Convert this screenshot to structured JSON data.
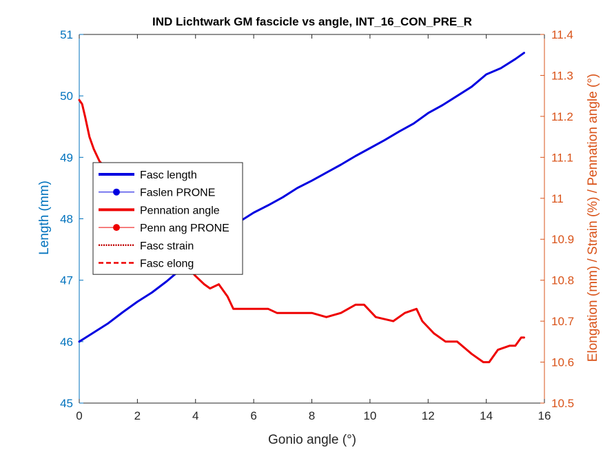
{
  "chart_data": {
    "type": "line",
    "title": "IND Lichtwark GM fascicle vs angle, INT_16_CON_PRE_R",
    "xlabel": "Gonio angle (°)",
    "ylabel_left": "Length (mm)",
    "ylabel_right": "Elongation (mm) / Strain (%) / Pennation angle (°)",
    "xlim": [
      0,
      16
    ],
    "ylim_left": [
      45,
      51
    ],
    "ylim_right": [
      10.5,
      11.4
    ],
    "x_ticks": [
      "0",
      "2",
      "4",
      "6",
      "8",
      "10",
      "12",
      "14",
      "16"
    ],
    "y_left_ticks": [
      "45",
      "46",
      "47",
      "48",
      "49",
      "50",
      "51"
    ],
    "y_right_ticks": [
      "10.5",
      "10.6",
      "10.7",
      "10.8",
      "10.9",
      "11",
      "11.1",
      "11.2",
      "11.3",
      "11.4"
    ],
    "grid": false,
    "legend_position": "middle-left",
    "colors": {
      "left_axis": "#0072BD",
      "right_axis": "#D95319",
      "fasc_length": "#0000E0",
      "pennation": "#EE0000"
    },
    "legend": [
      {
        "label": "Fasc length",
        "style": "thick-line",
        "color": "#0000E0"
      },
      {
        "label": "Faslen PRONE",
        "style": "line-marker",
        "color": "#0000E0"
      },
      {
        "label": "Pennation angle",
        "style": "thick-line",
        "color": "#EE0000"
      },
      {
        "label": "Penn ang PRONE",
        "style": "line-marker",
        "color": "#EE0000"
      },
      {
        "label": "Fasc strain",
        "style": "dotted",
        "color": "#C00000"
      },
      {
        "label": "Fasc elong",
        "style": "dashed",
        "color": "#EE0000"
      }
    ],
    "series": [
      {
        "axis": "left",
        "color": "#0000E0",
        "x": [
          0,
          0.5,
          1.0,
          1.5,
          2.0,
          2.5,
          3.0,
          3.5,
          4.0,
          4.5,
          5.0,
          5.5,
          6.0,
          6.5,
          7.0,
          7.5,
          8.0,
          8.5,
          9.0,
          9.5,
          10.0,
          10.5,
          11.0,
          11.5,
          12.0,
          12.5,
          13.0,
          13.5,
          14.0,
          14.5,
          15.0,
          15.3
        ],
        "y": [
          46.0,
          46.15,
          46.3,
          46.48,
          46.65,
          46.8,
          46.98,
          47.18,
          47.38,
          47.58,
          47.78,
          47.95,
          48.1,
          48.22,
          48.35,
          48.5,
          48.62,
          48.75,
          48.88,
          49.02,
          49.15,
          49.28,
          49.42,
          49.55,
          49.72,
          49.85,
          50.0,
          50.15,
          50.35,
          50.45,
          50.6,
          50.7
        ]
      },
      {
        "axis": "right",
        "color": "#EE0000",
        "x": [
          0,
          0.1,
          0.2,
          0.35,
          0.5,
          0.7,
          1.0,
          1.3,
          1.6,
          2.0,
          2.5,
          3.0,
          3.5,
          4.0,
          4.3,
          4.5,
          4.8,
          5.1,
          5.3,
          5.5,
          6.0,
          6.5,
          6.8,
          7.0,
          7.5,
          8.0,
          8.5,
          9.0,
          9.5,
          9.8,
          10.2,
          10.8,
          11.2,
          11.6,
          11.8,
          12.2,
          12.6,
          13.0,
          13.5,
          13.9,
          14.1,
          14.4,
          14.8,
          15.0,
          15.2,
          15.3
        ],
        "y": [
          11.24,
          11.23,
          11.2,
          11.15,
          11.12,
          11.09,
          11.07,
          11.05,
          11.02,
          10.99,
          10.95,
          10.9,
          10.85,
          10.81,
          10.79,
          10.78,
          10.79,
          10.76,
          10.73,
          10.73,
          10.73,
          10.73,
          10.72,
          10.72,
          10.72,
          10.72,
          10.71,
          10.72,
          10.74,
          10.74,
          10.71,
          10.7,
          10.72,
          10.73,
          10.7,
          10.67,
          10.65,
          10.65,
          10.62,
          10.6,
          10.6,
          10.63,
          10.64,
          10.64,
          10.66,
          10.66
        ]
      }
    ]
  }
}
